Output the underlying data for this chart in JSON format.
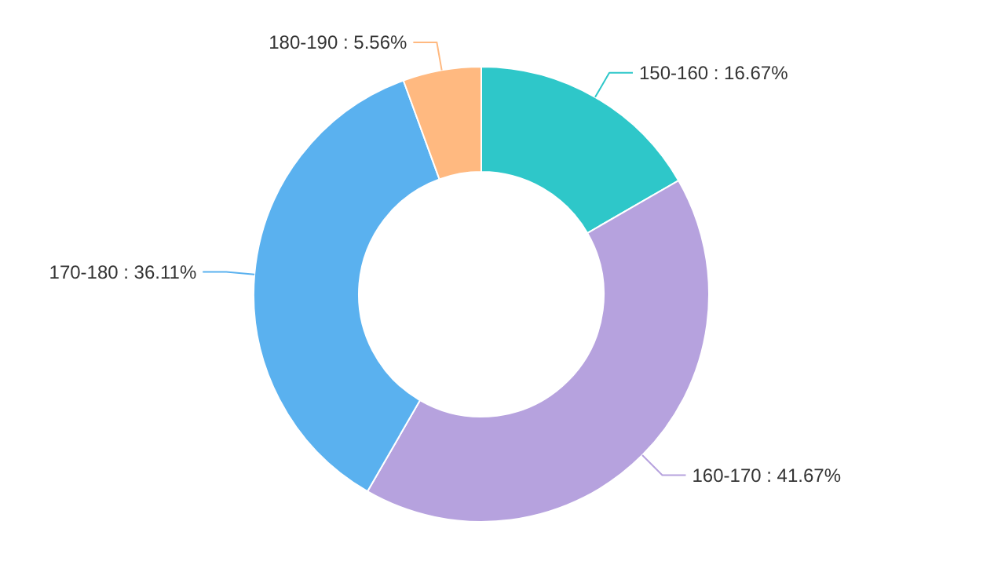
{
  "chart_data": {
    "type": "donut",
    "categories": [
      "150-160",
      "160-170",
      "170-180",
      "180-190"
    ],
    "values": [
      16.67,
      41.67,
      36.11,
      5.56
    ],
    "colors": [
      "#2ec7c9",
      "#b6a2de",
      "#5ab1ef",
      "#ffb980"
    ],
    "value_labels": [
      "16.67%",
      "41.67%",
      "36.11%",
      "5.56%"
    ],
    "legend": false
  }
}
